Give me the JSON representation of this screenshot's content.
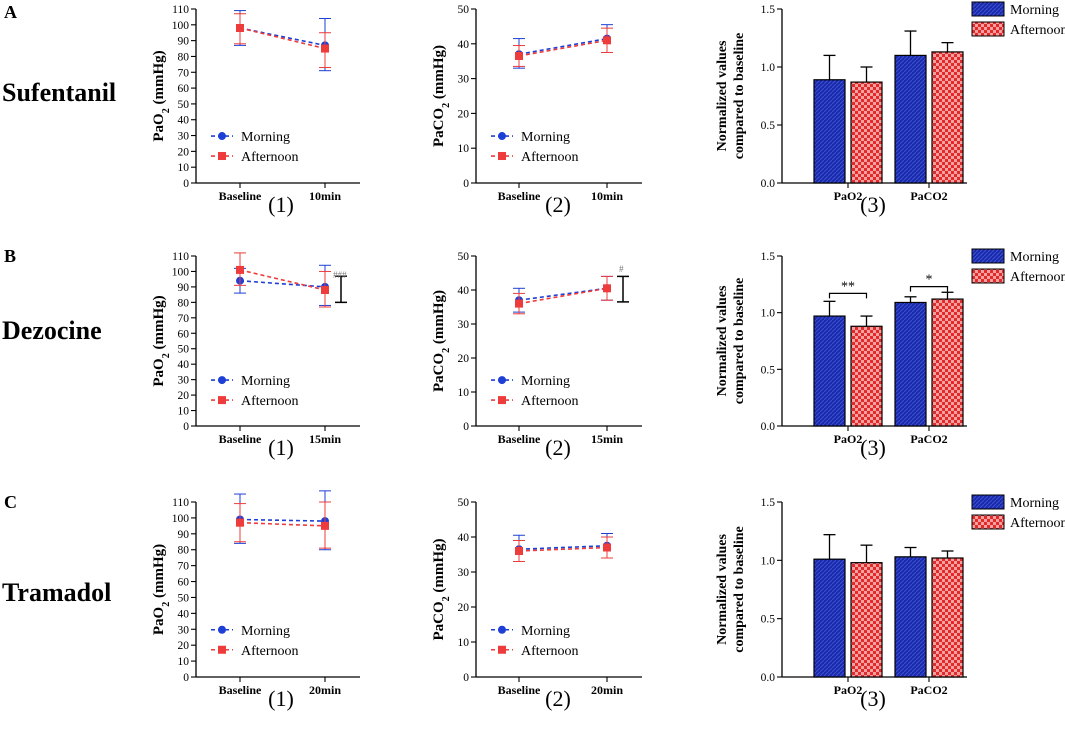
{
  "colors": {
    "morning": "#1e3fd6",
    "morning_bar": "#1a2aa8",
    "afternoon": "#ee3b3b",
    "afternoon_bar": "#e12a2a",
    "axis": "#000000",
    "annotation_gray": "#777777"
  },
  "rows": [
    {
      "letter": "A",
      "drug": "Sufentanil"
    },
    {
      "letter": "B",
      "drug": "Dezocine"
    },
    {
      "letter": "C",
      "drug": "Tramadol"
    }
  ],
  "panel_labels": [
    "(1)",
    "(2)",
    "(3)"
  ],
  "chart_data": [
    {
      "id": "A1",
      "row": 0,
      "col": 0,
      "type": "line",
      "xlabel": "",
      "ylabel_main": "PaO",
      "ylabel_sub": "2",
      "ylabel_tail": " (mmHg)",
      "categories": [
        "Baseline",
        "10min"
      ],
      "ylim": [
        0,
        110
      ],
      "yticks": [
        0,
        10,
        20,
        30,
        40,
        50,
        60,
        70,
        80,
        90,
        100,
        110
      ],
      "tick_labels": [
        "0",
        "10",
        "20",
        "30",
        "40",
        "50",
        "60",
        "70",
        "80",
        "90",
        "100",
        "110"
      ],
      "series": [
        {
          "name": "Morning",
          "values": [
            98,
            87
          ],
          "err_up": [
            11,
            17
          ],
          "err_down": [
            11,
            16
          ]
        },
        {
          "name": "Afternoon",
          "values": [
            98,
            85
          ],
          "err_up": [
            9,
            10
          ],
          "err_down": [
            10,
            12
          ]
        }
      ],
      "legend": [
        "Morning",
        "Afternoon"
      ],
      "annotation": "",
      "bracket": null
    },
    {
      "id": "A2",
      "row": 0,
      "col": 1,
      "type": "line",
      "xlabel": "",
      "ylabel_main": "PaCO",
      "ylabel_sub": "2",
      "ylabel_tail": " (mmHg)",
      "categories": [
        "Baseline",
        "10min"
      ],
      "ylim": [
        0,
        50
      ],
      "yticks": [
        0,
        10,
        20,
        30,
        40,
        50
      ],
      "tick_labels": [
        "0",
        "10",
        "20",
        "30",
        "40",
        "50"
      ],
      "series": [
        {
          "name": "Morning",
          "values": [
            37,
            41.5
          ],
          "err_up": [
            4.5,
            4
          ],
          "err_down": [
            4,
            4
          ]
        },
        {
          "name": "Afternoon",
          "values": [
            36.5,
            41
          ],
          "err_up": [
            3,
            3.5
          ],
          "err_down": [
            3,
            3.5
          ]
        }
      ],
      "legend": [
        "Morning",
        "Afternoon"
      ],
      "annotation": "",
      "bracket": null
    },
    {
      "id": "A3",
      "row": 0,
      "col": 2,
      "type": "bar",
      "ylabel_line1": "Normalized values",
      "ylabel_line2": "compared to baseline",
      "categories": [
        "PaO2",
        "PaCO2"
      ],
      "ylim": [
        0,
        1.5
      ],
      "yticks": [
        0,
        0.5,
        1,
        1.5
      ],
      "tick_labels": [
        "0.0",
        "0.5",
        "1.0",
        "1.5"
      ],
      "series": [
        {
          "name": "Morning",
          "values": [
            0.89,
            1.1
          ],
          "err": [
            0.21,
            0.21
          ]
        },
        {
          "name": "Afternoon",
          "values": [
            0.87,
            1.13
          ],
          "err": [
            0.13,
            0.08
          ]
        }
      ],
      "legend": [
        "Morning",
        "Afternoon"
      ],
      "sig": []
    },
    {
      "id": "B1",
      "row": 1,
      "col": 0,
      "type": "line",
      "xlabel": "",
      "ylabel_main": "PaO",
      "ylabel_sub": "2",
      "ylabel_tail": " (mmHg)",
      "categories": [
        "Baseline",
        "15min"
      ],
      "ylim": [
        0,
        110
      ],
      "yticks": [
        0,
        10,
        20,
        30,
        40,
        50,
        60,
        70,
        80,
        90,
        100,
        110
      ],
      "tick_labels": [
        "0",
        "10",
        "20",
        "30",
        "40",
        "50",
        "60",
        "70",
        "80",
        "90",
        "100",
        "110"
      ],
      "series": [
        {
          "name": "Morning",
          "values": [
            94,
            90
          ],
          "err_up": [
            8,
            14
          ],
          "err_down": [
            8,
            12
          ]
        },
        {
          "name": "Afternoon",
          "values": [
            101,
            88
          ],
          "err_up": [
            11,
            12
          ],
          "err_down": [
            10,
            11
          ]
        }
      ],
      "legend": [
        "Morning",
        "Afternoon"
      ],
      "annotation": "###",
      "bracket": [
        80,
        97
      ]
    },
    {
      "id": "B2",
      "row": 1,
      "col": 1,
      "type": "line",
      "xlabel": "",
      "ylabel_main": "PaCO",
      "ylabel_sub": "2",
      "ylabel_tail": " (mmHg)",
      "categories": [
        "Baseline",
        "15min"
      ],
      "ylim": [
        0,
        50
      ],
      "yticks": [
        0,
        10,
        20,
        30,
        40,
        50
      ],
      "tick_labels": [
        "0",
        "10",
        "20",
        "30",
        "40",
        "50"
      ],
      "series": [
        {
          "name": "Morning",
          "values": [
            37,
            40.5
          ],
          "err_up": [
            3.5,
            3.5
          ],
          "err_down": [
            3.5,
            3.5
          ]
        },
        {
          "name": "Afternoon",
          "values": [
            36,
            40.5
          ],
          "err_up": [
            3,
            3.5
          ],
          "err_down": [
            3,
            3.5
          ]
        }
      ],
      "legend": [
        "Morning",
        "Afternoon"
      ],
      "annotation": "#",
      "bracket": [
        36.5,
        44
      ]
    },
    {
      "id": "B3",
      "row": 1,
      "col": 2,
      "type": "bar",
      "ylabel_line1": "Normalized values",
      "ylabel_line2": "compared to baseline",
      "categories": [
        "PaO2",
        "PaCO2"
      ],
      "ylim": [
        0,
        1.5
      ],
      "yticks": [
        0,
        0.5,
        1,
        1.5
      ],
      "tick_labels": [
        "0.0",
        "0.5",
        "1.0",
        "1.5"
      ],
      "series": [
        {
          "name": "Morning",
          "values": [
            0.97,
            1.09
          ],
          "err": [
            0.13,
            0.05
          ]
        },
        {
          "name": "Afternoon",
          "values": [
            0.88,
            1.12
          ],
          "err": [
            0.09,
            0.06
          ]
        }
      ],
      "legend": [
        "Morning",
        "Afternoon"
      ],
      "sig": [
        {
          "category": 0,
          "label": "**",
          "y": 1.17
        },
        {
          "category": 1,
          "label": "*",
          "y": 1.23
        }
      ]
    },
    {
      "id": "C1",
      "row": 2,
      "col": 0,
      "type": "line",
      "xlabel": "",
      "ylabel_main": "PaO",
      "ylabel_sub": "2",
      "ylabel_tail": " (mmHg)",
      "categories": [
        "Baseline",
        "20min"
      ],
      "ylim": [
        0,
        110
      ],
      "yticks": [
        0,
        10,
        20,
        30,
        40,
        50,
        60,
        70,
        80,
        90,
        100,
        110
      ],
      "tick_labels": [
        "0",
        "10",
        "20",
        "30",
        "40",
        "50",
        "60",
        "70",
        "80",
        "90",
        "100",
        "110"
      ],
      "series": [
        {
          "name": "Morning",
          "values": [
            99,
            98
          ],
          "err_up": [
            16,
            19
          ],
          "err_down": [
            15,
            18
          ]
        },
        {
          "name": "Afternoon",
          "values": [
            97,
            95
          ],
          "err_up": [
            12,
            15
          ],
          "err_down": [
            12,
            14
          ]
        }
      ],
      "legend": [
        "Morning",
        "Afternoon"
      ],
      "annotation": "",
      "bracket": null
    },
    {
      "id": "C2",
      "row": 2,
      "col": 1,
      "type": "line",
      "xlabel": "",
      "ylabel_main": "PaCO",
      "ylabel_sub": "2",
      "ylabel_tail": " (mmHg)",
      "categories": [
        "Baseline",
        "20min"
      ],
      "ylim": [
        0,
        50
      ],
      "yticks": [
        0,
        10,
        20,
        30,
        40,
        50
      ],
      "tick_labels": [
        "0",
        "10",
        "20",
        "30",
        "40",
        "50"
      ],
      "series": [
        {
          "name": "Morning",
          "values": [
            36.5,
            37.5
          ],
          "err_up": [
            4,
            3.5
          ],
          "err_down": [
            3.5,
            3.5
          ]
        },
        {
          "name": "Afternoon",
          "values": [
            36,
            37
          ],
          "err_up": [
            3,
            3
          ],
          "err_down": [
            3,
            3
          ]
        }
      ],
      "legend": [
        "Morning",
        "Afternoon"
      ],
      "annotation": "",
      "bracket": null
    },
    {
      "id": "C3",
      "row": 2,
      "col": 2,
      "type": "bar",
      "ylabel_line1": "Normalized values",
      "ylabel_line2": "compared to baseline",
      "categories": [
        "PaO2",
        "PaCO2"
      ],
      "ylim": [
        0,
        1.5
      ],
      "yticks": [
        0,
        0.5,
        1,
        1.5
      ],
      "tick_labels": [
        "0.0",
        "0.5",
        "1.0",
        "1.5"
      ],
      "series": [
        {
          "name": "Morning",
          "values": [
            1.01,
            1.03
          ],
          "err": [
            0.21,
            0.08
          ]
        },
        {
          "name": "Afternoon",
          "values": [
            0.98,
            1.02
          ],
          "err": [
            0.15,
            0.06
          ]
        }
      ],
      "legend": [
        "Morning",
        "Afternoon"
      ],
      "sig": []
    }
  ]
}
